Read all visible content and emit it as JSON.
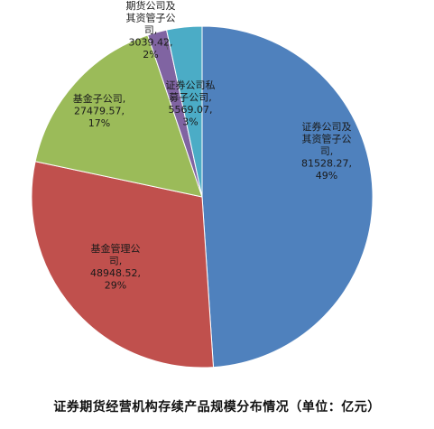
{
  "chart_data": {
    "type": "pie",
    "title": "证券期货经营机构存续产品规模分布情况（单位：亿元）",
    "unit": "亿元",
    "legend": "none",
    "slices": [
      {
        "category": "证券公司及其资管子公司",
        "label_lines": [
          "证券公司及",
          "其资管子公",
          "司,",
          "81528.27,",
          "49%"
        ],
        "value": 81528.27,
        "percent": "49%",
        "color": "#4f81bd"
      },
      {
        "category": "基金管理公司",
        "label_lines": [
          "基金管理公",
          "司,",
          "48948.52,",
          "29%"
        ],
        "value": 48948.52,
        "percent": "29%",
        "color": "#c0504d"
      },
      {
        "category": "基金子公司",
        "label_lines": [
          "基金子公司,",
          "27479.57,",
          "17%"
        ],
        "value": 27479.57,
        "percent": "17%",
        "color": "#9bbb59"
      },
      {
        "category": "期货公司及其资管子公司",
        "label_lines": [
          "期货公司及",
          "其资管子公",
          "司,",
          "3039.42,",
          "2%"
        ],
        "value": 3039.42,
        "percent": "2%",
        "color": "#8064a2"
      },
      {
        "category": "证券公司私募子公司",
        "label_lines": [
          "证券公司私",
          "募子公司,",
          "5569.07,",
          "3%"
        ],
        "value": 5569.07,
        "percent": "3%",
        "color": "#4bacc6"
      }
    ]
  }
}
